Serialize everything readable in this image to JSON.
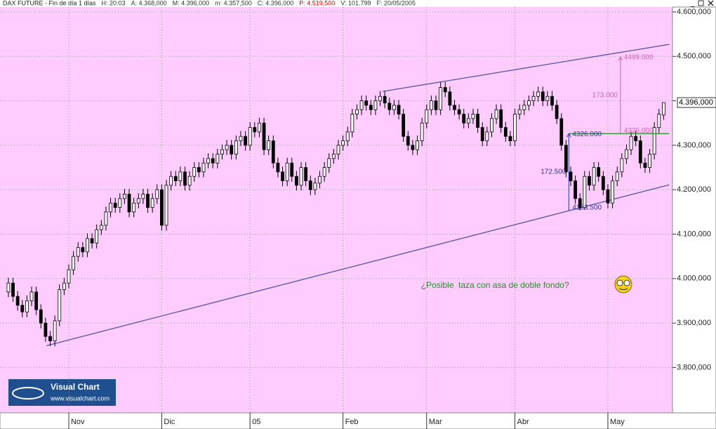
{
  "chart_data": {
    "type": "candlestick",
    "title": "DAX FUTURE - Fin de día 1 días",
    "header_items": [
      {
        "text": "H: 20:03",
        "color": "#333333"
      },
      {
        "text": "A: 4.368,000",
        "color": "#333333"
      },
      {
        "text": "M: 4.396,000",
        "color": "#333333"
      },
      {
        "text": "m: 4.357,500",
        "color": "#333333"
      },
      {
        "text": "C: 4.396,000",
        "color": "#333333"
      },
      {
        "text": "P: 4.519,500",
        "color": "#dd0000"
      },
      {
        "text": "V: 101.799",
        "color": "#333333"
      },
      {
        "text": "F: 20/05/2005",
        "color": "#333333"
      }
    ],
    "open": [
      3970,
      3990,
      3960,
      3940,
      3925,
      3950,
      3970,
      3930,
      3900,
      3870,
      3860,
      3905,
      3975,
      3990,
      4020,
      4050,
      4070,
      4060,
      4090,
      4080,
      4110,
      4120,
      4150,
      4170,
      4160,
      4180,
      4190,
      4150,
      4170,
      4180,
      4190,
      4160,
      4180,
      4200,
      4120,
      4210,
      4230,
      4220,
      4240,
      4210,
      4230,
      4250,
      4240,
      4260,
      4270,
      4260,
      4280,
      4290,
      4300,
      4280,
      4310,
      4320,
      4300,
      4340,
      4330,
      4350,
      4290,
      4310,
      4260,
      4240,
      4220,
      4260,
      4230,
      4210,
      4250,
      4220,
      4200,
      4215,
      4230,
      4250,
      4270,
      4280,
      4300,
      4310,
      4330,
      4370,
      4380,
      4400,
      4390,
      4380,
      4400,
      4410,
      4395,
      4380,
      4390,
      4370,
      4320,
      4300,
      4290,
      4310,
      4350,
      4380,
      4400,
      4380,
      4430,
      4420,
      4390,
      4380,
      4370,
      4350,
      4360,
      4370,
      4340,
      4310,
      4330,
      4360,
      4380,
      4340,
      4320,
      4310,
      4370,
      4380,
      4390,
      4400,
      4410,
      4420,
      4400,
      4410,
      4390,
      4360,
      4300,
      4240,
      4220,
      4180,
      4160,
      4230,
      4210,
      4250,
      4230,
      4200,
      4170,
      4220,
      4240,
      4270,
      4290,
      4320,
      4310,
      4260,
      4250,
      4280,
      4340,
      4368
    ],
    "high": [
      4002,
      4002,
      3972,
      3952,
      3962,
      3982,
      3982,
      3942,
      3912,
      3882,
      3917,
      3987,
      4002,
      4032,
      4062,
      4082,
      4082,
      4102,
      4102,
      4122,
      4132,
      4162,
      4182,
      4182,
      4192,
      4202,
      4202,
      4182,
      4192,
      4202,
      4202,
      4192,
      4212,
      4212,
      4222,
      4242,
      4242,
      4252,
      4252,
      4242,
      4262,
      4262,
      4272,
      4282,
      4282,
      4292,
      4302,
      4312,
      4312,
      4322,
      4332,
      4332,
      4352,
      4352,
      4362,
      4362,
      4322,
      4322,
      4272,
      4252,
      4272,
      4272,
      4242,
      4262,
      4262,
      4232,
      4227,
      4242,
      4262,
      4282,
      4292,
      4312,
      4322,
      4342,
      4382,
      4392,
      4412,
      4412,
      4402,
      4412,
      4422,
      4422,
      4407,
      4402,
      4402,
      4382,
      4332,
      4312,
      4322,
      4362,
      4392,
      4412,
      4412,
      4442,
      4442,
      4432,
      4402,
      4392,
      4382,
      4372,
      4382,
      4382,
      4352,
      4342,
      4372,
      4392,
      4392,
      4352,
      4332,
      4382,
      4392,
      4402,
      4412,
      4422,
      4432,
      4432,
      4422,
      4422,
      4402,
      4372,
      4312,
      4252,
      4232,
      4192,
      4242,
      4242,
      4262,
      4262,
      4242,
      4212,
      4232,
      4252,
      4282,
      4302,
      4332,
      4332,
      4322,
      4272,
      4292,
      4352,
      4382,
      4396
    ],
    "low": [
      3958,
      3948,
      3928,
      3913,
      3913,
      3938,
      3918,
      3888,
      3858,
      3848,
      3848,
      3893,
      3963,
      3978,
      4008,
      4038,
      4048,
      4048,
      4068,
      4068,
      4098,
      4108,
      4138,
      4148,
      4148,
      4168,
      4138,
      4138,
      4158,
      4168,
      4148,
      4148,
      4168,
      4108,
      4108,
      4198,
      4208,
      4208,
      4198,
      4198,
      4218,
      4228,
      4228,
      4248,
      4248,
      4248,
      4268,
      4278,
      4268,
      4268,
      4298,
      4288,
      4288,
      4318,
      4318,
      4278,
      4278,
      4248,
      4228,
      4208,
      4208,
      4218,
      4198,
      4198,
      4208,
      4188,
      4188,
      4203,
      4218,
      4238,
      4258,
      4268,
      4288,
      4298,
      4318,
      4358,
      4368,
      4378,
      4368,
      4368,
      4388,
      4383,
      4368,
      4368,
      4358,
      4308,
      4288,
      4278,
      4278,
      4298,
      4338,
      4368,
      4368,
      4368,
      4408,
      4378,
      4368,
      4358,
      4338,
      4338,
      4348,
      4328,
      4298,
      4298,
      4318,
      4348,
      4328,
      4308,
      4298,
      4298,
      4358,
      4368,
      4378,
      4388,
      4398,
      4388,
      4388,
      4378,
      4348,
      4288,
      4228,
      4208,
      4168,
      4153.5,
      4155,
      4198,
      4198,
      4218,
      4188,
      4158,
      4158,
      4208,
      4228,
      4258,
      4278,
      4298,
      4248,
      4238,
      4238,
      4268,
      4328,
      4357.5
    ],
    "close": [
      3990,
      3960,
      3940,
      3925,
      3950,
      3970,
      3930,
      3900,
      3870,
      3860,
      3905,
      3975,
      3990,
      4020,
      4050,
      4070,
      4060,
      4090,
      4080,
      4110,
      4120,
      4150,
      4170,
      4160,
      4180,
      4190,
      4150,
      4170,
      4180,
      4190,
      4160,
      4180,
      4200,
      4120,
      4210,
      4230,
      4220,
      4240,
      4210,
      4230,
      4250,
      4240,
      4260,
      4270,
      4260,
      4280,
      4290,
      4300,
      4280,
      4310,
      4320,
      4300,
      4340,
      4330,
      4350,
      4290,
      4310,
      4260,
      4240,
      4220,
      4260,
      4230,
      4210,
      4250,
      4220,
      4200,
      4215,
      4230,
      4250,
      4270,
      4280,
      4300,
      4310,
      4330,
      4370,
      4380,
      4400,
      4390,
      4380,
      4400,
      4410,
      4395,
      4380,
      4390,
      4370,
      4320,
      4300,
      4290,
      4310,
      4350,
      4380,
      4400,
      4380,
      4430,
      4420,
      4390,
      4380,
      4370,
      4350,
      4360,
      4370,
      4340,
      4310,
      4330,
      4360,
      4380,
      4340,
      4320,
      4310,
      4370,
      4380,
      4390,
      4400,
      4410,
      4420,
      4400,
      4410,
      4390,
      4360,
      4300,
      4240,
      4220,
      4180,
      4160,
      4230,
      4210,
      4250,
      4230,
      4200,
      4170,
      4220,
      4240,
      4270,
      4290,
      4320,
      4310,
      4260,
      4250,
      4280,
      4340,
      4370,
      4396
    ],
    "colors": {
      "up": "#ffffff",
      "down": "#000000",
      "edge": "#000000"
    },
    "background": "#ffccff",
    "xlim": [
      -1.8,
      142.9
    ],
    "xticks": [
      {
        "value": 13,
        "label": "Nov"
      },
      {
        "value": 33,
        "label": "Dic"
      },
      {
        "value": 52,
        "label": "05"
      },
      {
        "value": 72,
        "label": "Feb"
      },
      {
        "value": 90,
        "label": "Mar"
      },
      {
        "value": 109,
        "label": "Abr"
      },
      {
        "value": 129,
        "label": "May"
      }
    ],
    "ylim": [
      3698,
      4611
    ],
    "yticks": [
      {
        "value": 3800,
        "label": "3.800,000"
      },
      {
        "value": 3900,
        "label": "3.900,000"
      },
      {
        "value": 4000,
        "label": "4.000,000"
      },
      {
        "value": 4100,
        "label": "4.100,000"
      },
      {
        "value": 4200,
        "label": "4.200,000"
      },
      {
        "value": 4300,
        "label": "4.300,000"
      },
      {
        "value": 4400,
        "label": "4.400,000"
      },
      {
        "value": 4500,
        "label": "4.500,000"
      },
      {
        "value": 4600,
        "label": "4.600,000"
      }
    ],
    "grid": true,
    "last_price": {
      "value": 4396,
      "label": "4.396,000"
    },
    "trendlines": [
      {
        "x": [
          8.2,
          142.2
        ],
        "y": [
          3849,
          4211
        ],
        "color": "#5555aa"
      },
      {
        "x": [
          80.5,
          142.2
        ],
        "y": [
          4421,
          4527
        ],
        "color": "#5555aa"
      }
    ],
    "level_line": {
      "value": 4326,
      "x": [
        120.6,
        142.2
      ],
      "color": "#339933"
    },
    "measures": [
      {
        "at": 120.6,
        "from": 4153.5,
        "to": 4326,
        "from_label": "4153.500",
        "to_label": "4326.000",
        "diff_label": "172.500",
        "color": "#333399"
      },
      {
        "at": 131.7,
        "from": 4326,
        "to": 4499,
        "from_label": "4326.000",
        "to_label": "4499.000",
        "diff_label": "173.000",
        "color": "#cc66aa"
      }
    ],
    "note": {
      "text": "¿Posible  taza con asa de doble fondo?",
      "at": 88.8,
      "value": 3984,
      "color": "#2a8a2a"
    }
  },
  "logo": {
    "title": "Visual Chart",
    "url": "www.visualchart.com"
  }
}
